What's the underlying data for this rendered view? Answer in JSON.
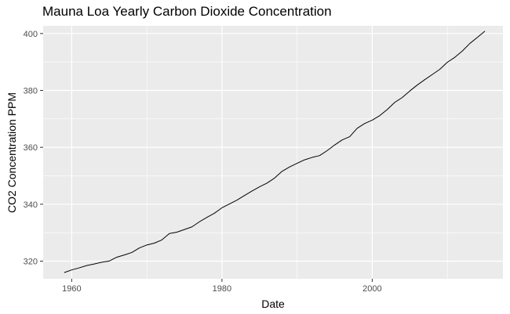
{
  "chart_data": {
    "type": "line",
    "title": "Mauna Loa Yearly Carbon Dioxide Concentration",
    "xlabel": "Date",
    "ylabel": "CO2 Concentration PPM",
    "xlim": [
      1956.2,
      2017.4
    ],
    "ylim": [
      313.8,
      402.7
    ],
    "xticks": [
      1960,
      1980,
      2000
    ],
    "xtick_labels": [
      "1960",
      "1980",
      "2000"
    ],
    "yticks": [
      320,
      340,
      360,
      380,
      400
    ],
    "ytick_labels": [
      "320",
      "340",
      "360",
      "380",
      "400"
    ],
    "grid": true,
    "legend": "none",
    "background_color": "#ebebeb",
    "line_color": "#000000",
    "series": [
      {
        "x": [
          1959,
          1960,
          1961,
          1962,
          1963,
          1964,
          1965,
          1966,
          1967,
          1968,
          1969,
          1970,
          1971,
          1972,
          1973,
          1974,
          1975,
          1976,
          1977,
          1978,
          1979,
          1980,
          1981,
          1982,
          1983,
          1984,
          1985,
          1986,
          1987,
          1988,
          1989,
          1990,
          1991,
          1992,
          1993,
          1994,
          1995,
          1996,
          1997,
          1998,
          1999,
          2000,
          2001,
          2002,
          2003,
          2004,
          2005,
          2006,
          2007,
          2008,
          2009,
          2010,
          2011,
          2012,
          2013,
          2014,
          2015
        ],
        "y": [
          315.97,
          316.91,
          317.64,
          318.45,
          318.99,
          319.62,
          320.04,
          321.38,
          322.16,
          323.04,
          324.62,
          325.68,
          326.32,
          327.45,
          329.68,
          330.18,
          331.11,
          332.04,
          333.83,
          335.4,
          336.84,
          338.75,
          340.11,
          341.45,
          343.05,
          344.65,
          346.12,
          347.42,
          349.19,
          351.57,
          353.12,
          354.39,
          355.61,
          356.45,
          357.1,
          358.83,
          360.82,
          362.61,
          363.73,
          366.7,
          368.38,
          369.55,
          371.14,
          373.28,
          375.8,
          377.52,
          379.8,
          381.9,
          383.79,
          385.6,
          387.43,
          389.9,
          391.65,
          393.85,
          396.52,
          398.65,
          400.83
        ]
      }
    ]
  }
}
